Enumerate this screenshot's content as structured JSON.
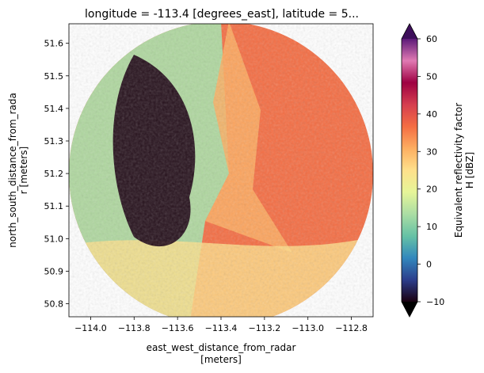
{
  "chart_data": {
    "type": "heatmap",
    "title": "longitude = -113.4 [degrees_east], latitude = 5...",
    "xlabel_line1": "east_west_distance_from_radar",
    "xlabel_line2": "[meters]",
    "ylabel_line1": "north_south_distance_from_rada",
    "ylabel_line2": "r [meters]",
    "colorbar_label_line1": "Equivalent reflectivity factor",
    "colorbar_label_line2": "H [dBZ]",
    "xlim": [
      -114.1,
      -112.7
    ],
    "ylim": [
      50.76,
      51.66
    ],
    "xticks": [
      -114.0,
      -113.8,
      -113.6,
      -113.4,
      -113.2,
      -113.0,
      -112.8
    ],
    "xtick_labels": [
      "−114.0",
      "−113.8",
      "−113.6",
      "−113.4",
      "−113.2",
      "−113.0",
      "−112.8"
    ],
    "yticks": [
      50.8,
      50.9,
      51.0,
      51.1,
      51.2,
      51.3,
      51.4,
      51.5,
      51.6
    ],
    "ytick_labels": [
      "50.8",
      "50.9",
      "51.0",
      "51.1",
      "51.2",
      "51.3",
      "51.4",
      "51.5",
      "51.6"
    ],
    "colorbar_range": [
      -10,
      60
    ],
    "colorbar_ticks": [
      -10,
      0,
      10,
      20,
      30,
      40,
      50,
      60
    ],
    "colorbar_tick_labels": [
      "−10",
      "0",
      "10",
      "20",
      "30",
      "40",
      "50",
      "60"
    ],
    "colorbar_extend": "both",
    "colormap": "Spectral_r",
    "colormap_stops": [
      "#1a0010",
      "#2c3e8c",
      "#3288bd",
      "#66c2a5",
      "#abdda4",
      "#e6f598",
      "#fee08b",
      "#fdae61",
      "#f46d43",
      "#d53e4f",
      "#9e0142",
      "#e07ab3",
      "#5c1a78"
    ],
    "radar_center": {
      "lon": -113.4,
      "lat": 51.2
    },
    "field_regions": [
      {
        "area": "west",
        "dbz": 15
      },
      {
        "area": "far-west-core",
        "dbz": -10
      },
      {
        "area": "center",
        "dbz": 28
      },
      {
        "area": "east",
        "dbz": 38
      },
      {
        "area": "south",
        "dbz": 25
      }
    ]
  }
}
